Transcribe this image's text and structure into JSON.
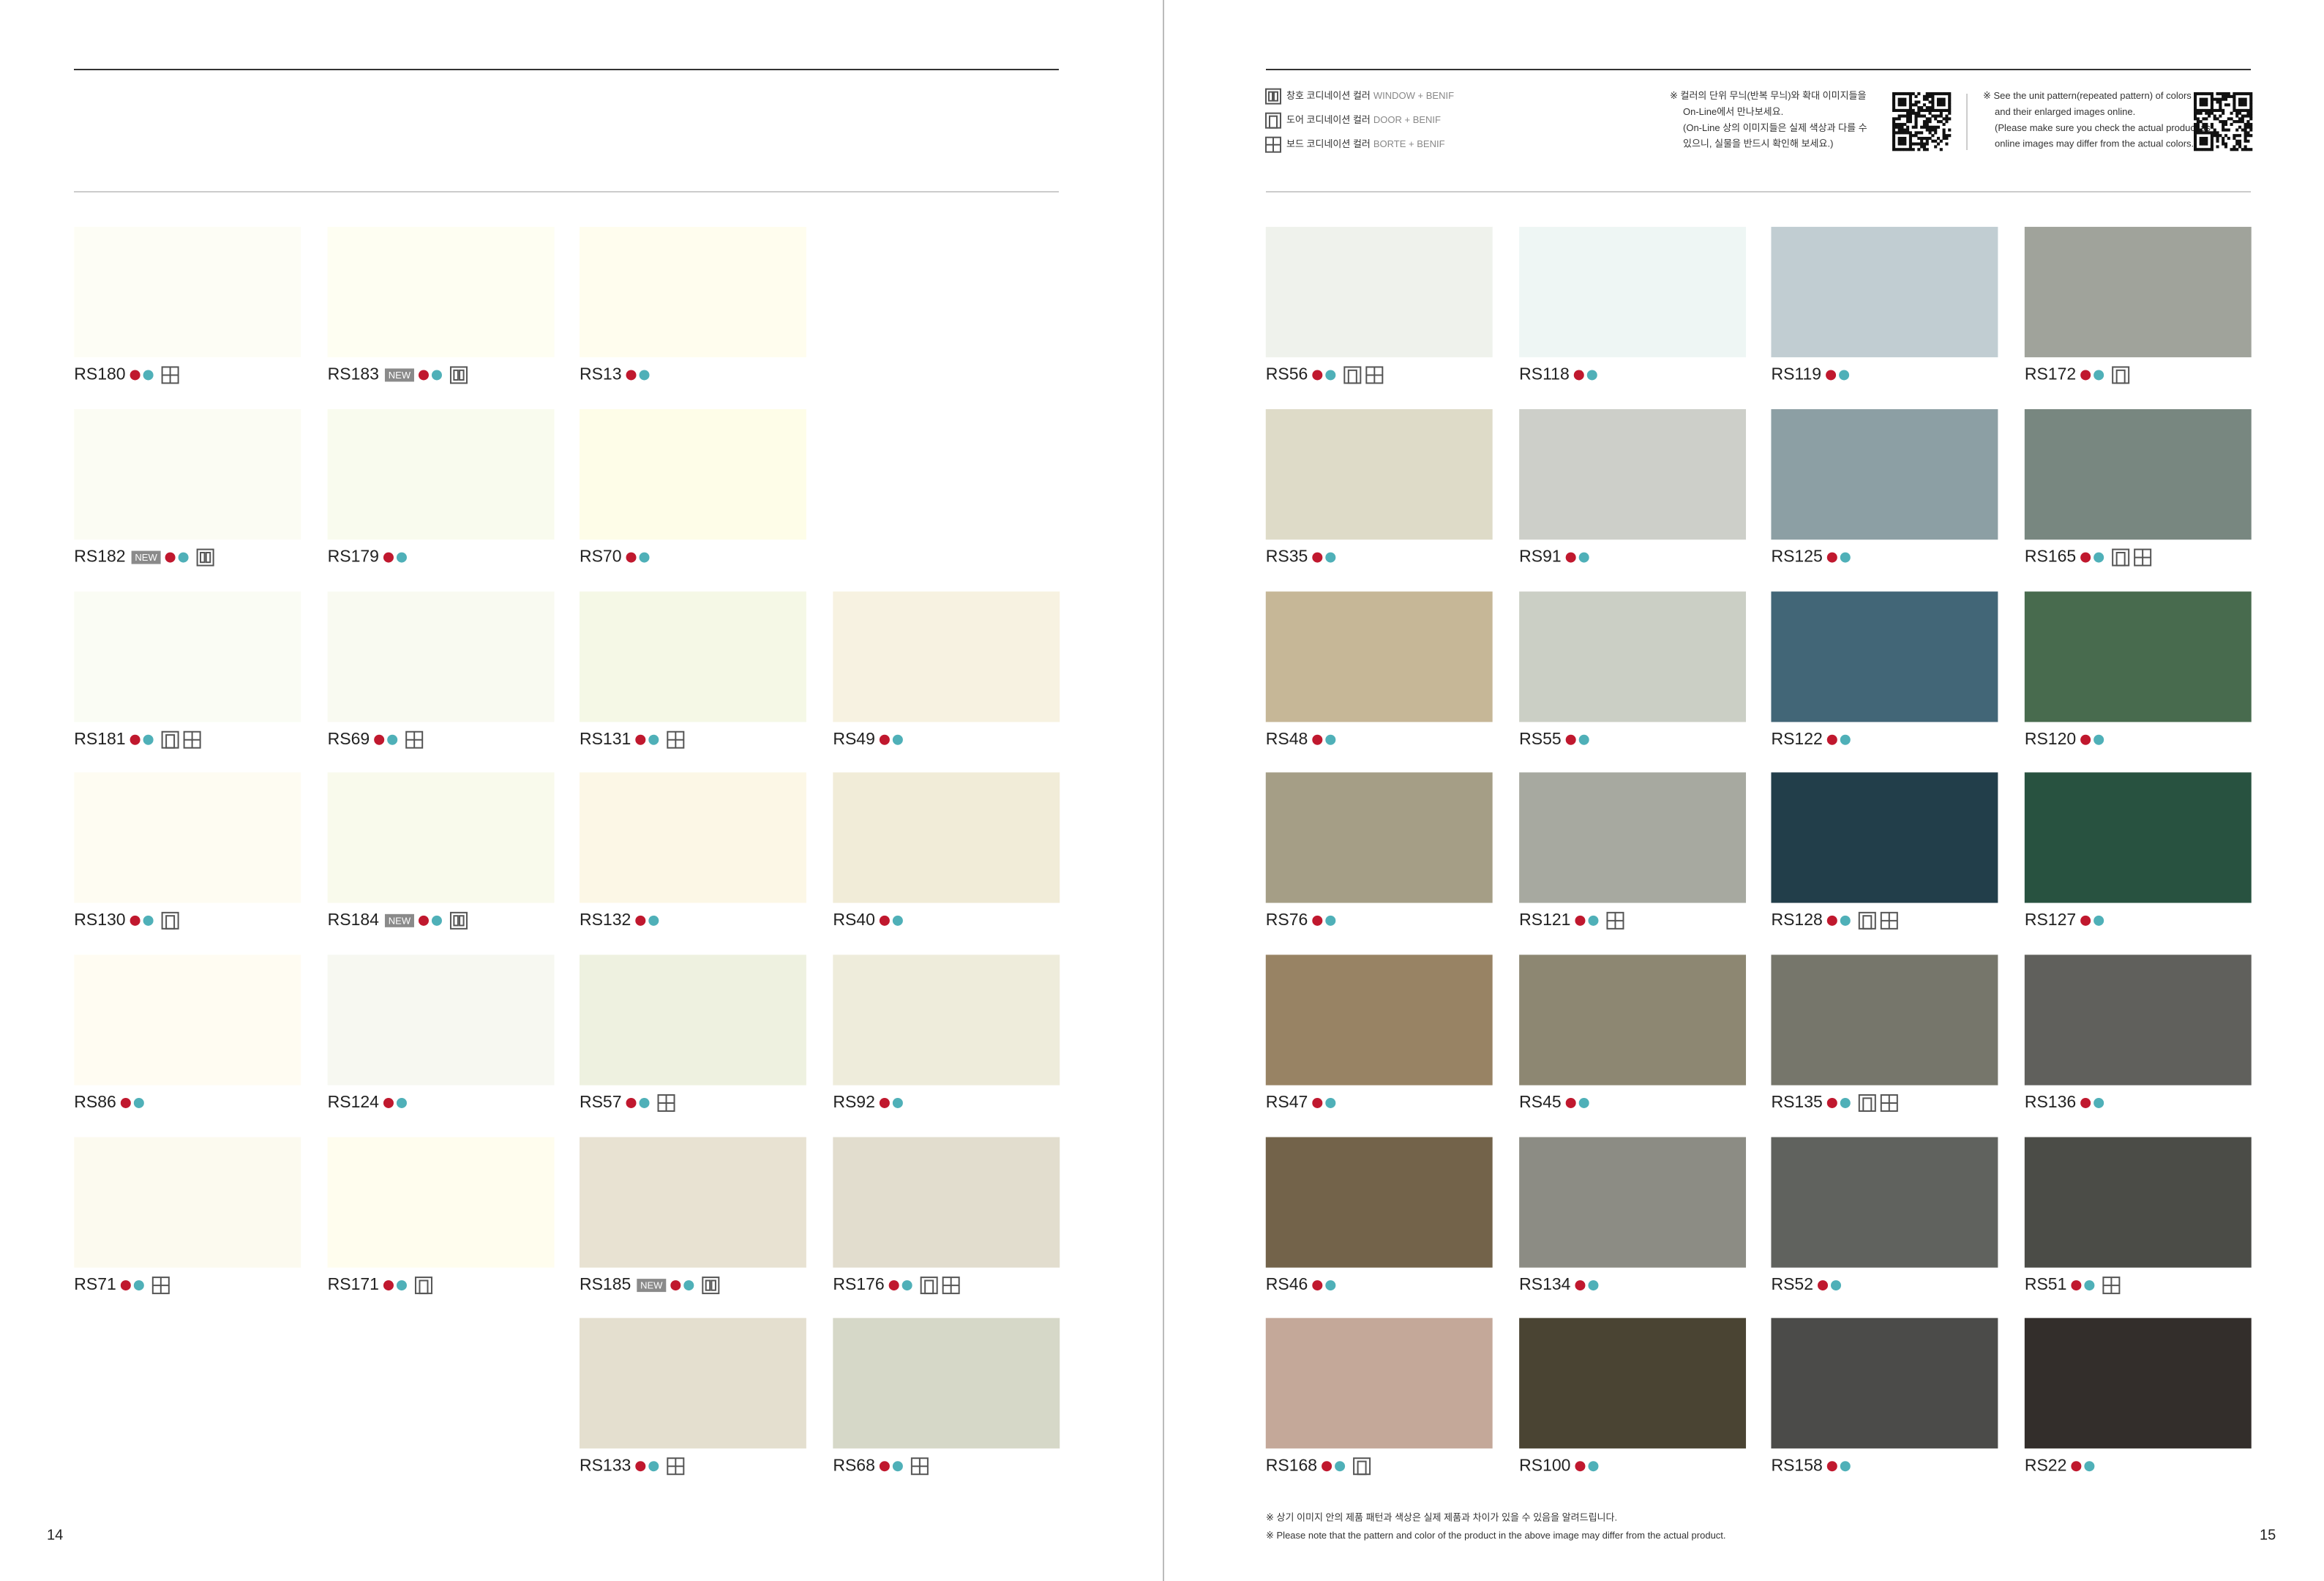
{
  "badge_new": "NEW",
  "legend": [
    {
      "icon": "window",
      "ko": "창호 코디네이션 컬러",
      "en": "WINDOW + BENIF"
    },
    {
      "icon": "door",
      "ko": "도어 코디네이션 컬러",
      "en": "DOOR + BENIF"
    },
    {
      "icon": "board",
      "ko": "보드 코디네이션 컬러",
      "en": "BORTE + BENIF"
    }
  ],
  "online_note_ko": [
    "※ 컬러의 단위 무늬(반복 무늬)와 확대 이미지들을",
    "On-Line에서 만나보세요.",
    "(On-Line 상의 이미지들은 실제 색상과 다를 수",
    "있으니, 실물을 반드시 확인해 보세요.)"
  ],
  "online_note_en": [
    "※ See the unit pattern(repeated pattern) of colors",
    "and their enlarged images online.",
    "(Please make sure you check the actual product as",
    "online images may differ from the actual colors.)"
  ],
  "footer_notes": [
    "※ 상기 이미지 안의 제품 패턴과 색상은 실제 제품과 차이가 있을 수 있음을 알려드립니다.",
    "※ Please note that the pattern and color of the product in the above image may differ from the actual product."
  ],
  "pages": [
    {
      "number": "14",
      "rows": [
        [
          {
            "code": "RS180",
            "color": "#fdfdf5",
            "new": false,
            "icons": [
              "board"
            ]
          },
          {
            "code": "RS183",
            "color": "#fefef2",
            "new": true,
            "icons": [
              "window"
            ]
          },
          {
            "code": "RS13",
            "color": "#fffdee",
            "new": false,
            "icons": []
          },
          null
        ],
        [
          {
            "code": "RS182",
            "color": "#fbfcf3",
            "new": true,
            "icons": [
              "window"
            ]
          },
          {
            "code": "RS179",
            "color": "#f9fbee",
            "new": false,
            "icons": []
          },
          {
            "code": "RS70",
            "color": "#fefde8",
            "new": false,
            "icons": []
          },
          null
        ],
        [
          {
            "code": "RS181",
            "color": "#fafcf4",
            "new": false,
            "icons": [
              "door",
              "board"
            ]
          },
          {
            "code": "RS69",
            "color": "#f9faf1",
            "new": false,
            "icons": [
              "board"
            ]
          },
          {
            "code": "RS131",
            "color": "#f5f8e6",
            "new": false,
            "icons": [
              "board"
            ]
          },
          {
            "code": "RS49",
            "color": "#f7f2e1",
            "new": false,
            "icons": []
          }
        ],
        [
          {
            "code": "RS130",
            "color": "#fefcf2",
            "new": false,
            "icons": [
              "door"
            ]
          },
          {
            "code": "RS184",
            "color": "#f9faec",
            "new": true,
            "icons": [
              "window"
            ]
          },
          {
            "code": "RS132",
            "color": "#fcf7e6",
            "new": false,
            "icons": []
          },
          {
            "code": "RS40",
            "color": "#f1ecd8",
            "new": false,
            "icons": []
          }
        ],
        [
          {
            "code": "RS86",
            "color": "#fffcf2",
            "new": false,
            "icons": []
          },
          {
            "code": "RS124",
            "color": "#f7f8f1",
            "new": false,
            "icons": []
          },
          {
            "code": "RS57",
            "color": "#eef1e0",
            "new": false,
            "icons": [
              "board"
            ]
          },
          {
            "code": "RS92",
            "color": "#eeecdb",
            "new": false,
            "icons": []
          }
        ],
        [
          {
            "code": "RS71",
            "color": "#fcfaef",
            "new": false,
            "icons": [
              "board"
            ]
          },
          {
            "code": "RS171",
            "color": "#fffdee",
            "new": false,
            "icons": [
              "door"
            ]
          },
          {
            "code": "RS185",
            "color": "#e8e2d2",
            "new": true,
            "icons": [
              "window"
            ]
          },
          {
            "code": "RS176",
            "color": "#e2ddce",
            "new": false,
            "icons": [
              "door",
              "board"
            ]
          }
        ],
        [
          null,
          null,
          {
            "code": "RS133",
            "color": "#e4dfcf",
            "new": false,
            "icons": [
              "board"
            ]
          },
          {
            "code": "RS68",
            "color": "#d6d8c8",
            "new": false,
            "icons": [
              "board"
            ]
          }
        ]
      ]
    },
    {
      "number": "15",
      "rows": [
        [
          {
            "code": "RS56",
            "color": "#eff2ec",
            "new": false,
            "icons": [
              "door",
              "board"
            ]
          },
          {
            "code": "RS118",
            "color": "#eef6f4",
            "new": false,
            "icons": []
          },
          {
            "code": "RS119",
            "color": "#c1cdd2",
            "new": false,
            "icons": []
          },
          {
            "code": "RS172",
            "color": "#a0a39b",
            "new": false,
            "icons": [
              "door"
            ]
          }
        ],
        [
          {
            "code": "RS35",
            "color": "#dedbc8",
            "new": false,
            "icons": []
          },
          {
            "code": "RS91",
            "color": "#cdcfc9",
            "new": false,
            "icons": []
          },
          {
            "code": "RS125",
            "color": "#8c9fa4",
            "new": false,
            "icons": []
          },
          {
            "code": "RS165",
            "color": "#788780",
            "new": false,
            "icons": [
              "door",
              "board"
            ]
          }
        ],
        [
          {
            "code": "RS48",
            "color": "#c6b797",
            "new": false,
            "icons": []
          },
          {
            "code": "RS55",
            "color": "#cbcfc5",
            "new": false,
            "icons": []
          },
          {
            "code": "RS122",
            "color": "#426677",
            "new": false,
            "icons": []
          },
          {
            "code": "RS120",
            "color": "#486b4e",
            "new": false,
            "icons": []
          }
        ],
        [
          {
            "code": "RS76",
            "color": "#a59e86",
            "new": false,
            "icons": []
          },
          {
            "code": "RS121",
            "color": "#a7a9a0",
            "new": false,
            "icons": [
              "board"
            ]
          },
          {
            "code": "RS128",
            "color": "#223e4a",
            "new": false,
            "icons": [
              "door",
              "board"
            ]
          },
          {
            "code": "RS127",
            "color": "#285240",
            "new": false,
            "icons": []
          }
        ],
        [
          {
            "code": "RS47",
            "color": "#988364",
            "new": false,
            "icons": []
          },
          {
            "code": "RS45",
            "color": "#8d8772",
            "new": false,
            "icons": []
          },
          {
            "code": "RS135",
            "color": "#76766b",
            "new": false,
            "icons": [
              "door",
              "board"
            ]
          },
          {
            "code": "RS136",
            "color": "#60605c",
            "new": false,
            "icons": []
          }
        ],
        [
          {
            "code": "RS46",
            "color": "#73634a",
            "new": false,
            "icons": []
          },
          {
            "code": "RS134",
            "color": "#8c8c84",
            "new": false,
            "icons": []
          },
          {
            "code": "RS52",
            "color": "#60625e",
            "new": false,
            "icons": []
          },
          {
            "code": "RS51",
            "color": "#4b4c47",
            "new": false,
            "icons": [
              "board"
            ]
          }
        ],
        [
          {
            "code": "RS168",
            "color": "#c4a899",
            "new": false,
            "icons": [
              "door"
            ]
          },
          {
            "code": "RS100",
            "color": "#4a4433",
            "new": false,
            "icons": []
          },
          {
            "code": "RS158",
            "color": "#4b4b49",
            "new": false,
            "icons": []
          },
          {
            "code": "RS22",
            "color": "#332e2b",
            "new": false,
            "icons": []
          }
        ]
      ]
    }
  ]
}
